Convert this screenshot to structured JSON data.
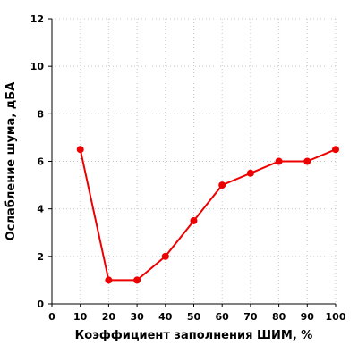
{
  "chart_data": {
    "type": "line",
    "title": "",
    "xlabel": "Коэффициент заполнения ШИМ, %",
    "ylabel": "Ослабление шума, дБА",
    "xlim": [
      0,
      100
    ],
    "ylim": [
      0,
      12
    ],
    "xticks": [
      "0",
      "10",
      "20",
      "30",
      "40",
      "50",
      "60",
      "70",
      "80",
      "90",
      "100"
    ],
    "yticks": [
      "0",
      "2",
      "4",
      "6",
      "8",
      "10",
      "12"
    ],
    "grid": true,
    "legend": "none",
    "series": [
      {
        "color": "#ee0000",
        "x": [
          10,
          20,
          30,
          40,
          50,
          60,
          70,
          80,
          90,
          100
        ],
        "y": [
          6.5,
          1,
          1,
          2,
          3.5,
          5,
          5.5,
          6,
          6,
          6.5
        ]
      }
    ]
  }
}
